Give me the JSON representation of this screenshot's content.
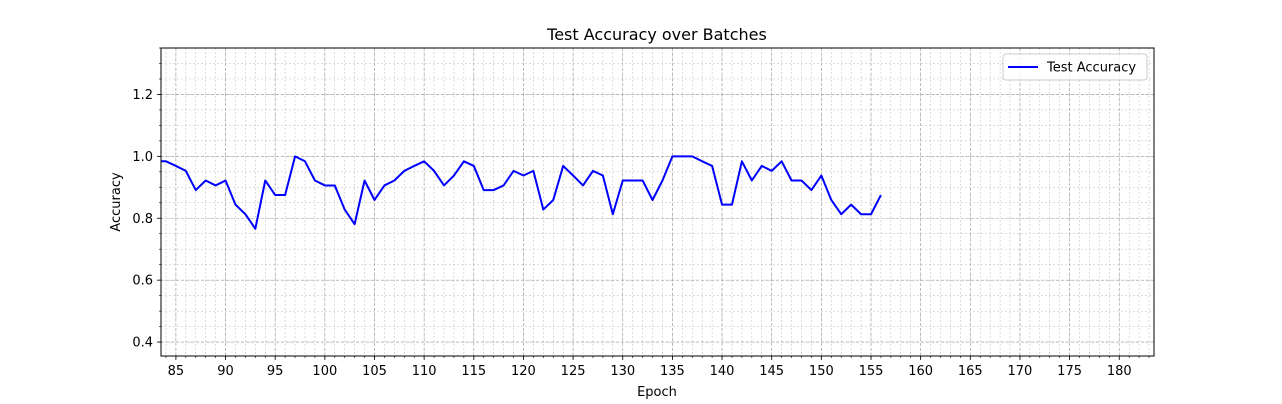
{
  "chart_data": {
    "type": "line",
    "title": "Test Accuracy over Batches",
    "xlabel": "Epoch",
    "ylabel": "Accuracy",
    "xlim": [
      83.5,
      183.5
    ],
    "ylim": [
      0.355,
      1.35
    ],
    "x_major_ticks": [
      85,
      90,
      95,
      100,
      105,
      110,
      115,
      120,
      125,
      130,
      135,
      140,
      145,
      150,
      155,
      160,
      165,
      170,
      175,
      180
    ],
    "x_minor_step": 1,
    "y_major_ticks": [
      0.4,
      0.6,
      0.8,
      1.0,
      1.2
    ],
    "y_tick_labels": [
      "0.4",
      "0.6",
      "0.8",
      "1.0",
      "1.2"
    ],
    "y_minor_step": 0.05,
    "grid": true,
    "legend": {
      "position": "top-right",
      "entries": [
        "Test Accuracy"
      ]
    },
    "series": [
      {
        "name": "Test Accuracy",
        "color": "#0000ff",
        "x": [
          83,
          84,
          85,
          86,
          87,
          88,
          89,
          90,
          91,
          92,
          93,
          94,
          95,
          96,
          97,
          98,
          99,
          100,
          101,
          102,
          103,
          104,
          105,
          106,
          107,
          108,
          109,
          110,
          111,
          112,
          113,
          114,
          115,
          116,
          117,
          118,
          119,
          120,
          121,
          122,
          123,
          124,
          125,
          126,
          127,
          128,
          129,
          130,
          131,
          132,
          133,
          134,
          135,
          136,
          137,
          138,
          139,
          140,
          141,
          142,
          143,
          144,
          145,
          146,
          147,
          148,
          149,
          150,
          151,
          152,
          153,
          154,
          155,
          156
        ],
        "values": [
          0.984,
          0.984,
          0.969,
          0.953,
          0.891,
          0.922,
          0.906,
          0.922,
          0.844,
          0.813,
          0.766,
          0.922,
          0.875,
          0.875,
          1.0,
          0.984,
          0.922,
          0.906,
          0.906,
          0.828,
          0.781,
          0.922,
          0.859,
          0.906,
          0.922,
          0.953,
          0.969,
          0.984,
          0.953,
          0.906,
          0.938,
          0.984,
          0.969,
          0.891,
          0.891,
          0.906,
          0.953,
          0.938,
          0.953,
          0.828,
          0.859,
          0.969,
          0.938,
          0.906,
          0.953,
          0.938,
          0.813,
          0.922,
          0.922,
          0.922,
          0.859,
          0.922,
          1.0,
          1.0,
          1.0,
          0.984,
          0.969,
          0.844,
          0.844,
          0.984,
          0.922,
          0.969,
          0.953,
          0.984,
          0.922,
          0.922,
          0.891,
          0.938,
          0.859,
          0.813,
          0.844,
          0.813,
          0.813,
          0.875
        ]
      }
    ]
  }
}
